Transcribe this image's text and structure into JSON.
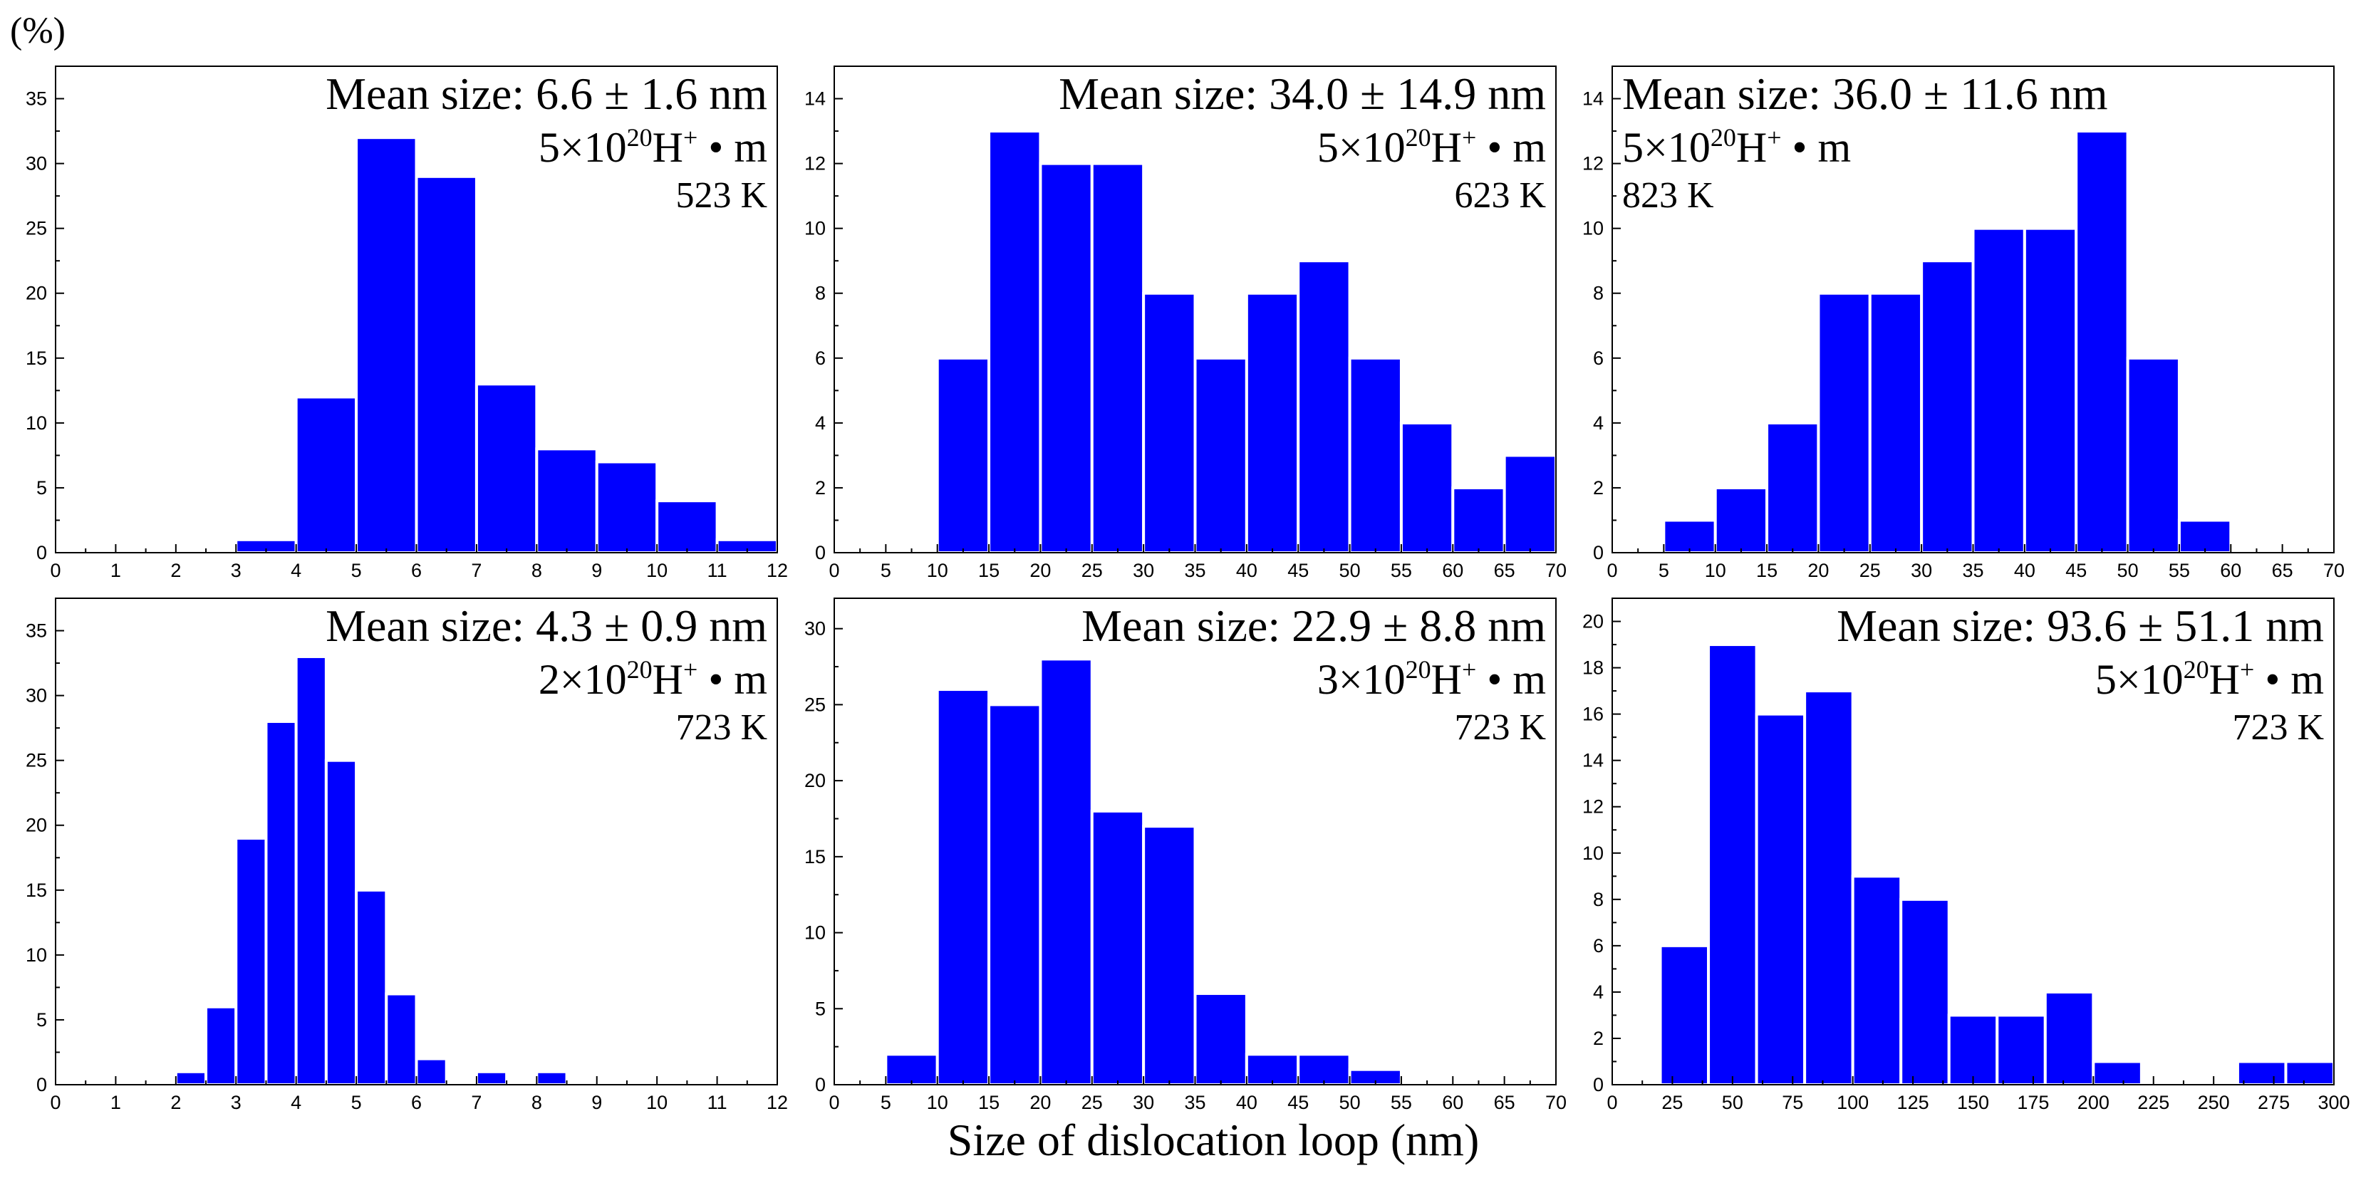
{
  "y_unit_label": "(%)",
  "x_axis_label": "Size of dislocation loop (nm)",
  "chart_data": [
    {
      "type": "bar",
      "x_tick_labels": [
        "0",
        "1",
        "2",
        "3",
        "4",
        "5",
        "6",
        "7",
        "8",
        "9",
        "10",
        "11",
        "12"
      ],
      "y_tick_labels": [
        "0",
        "5",
        "10",
        "15",
        "20",
        "25",
        "30",
        "35"
      ],
      "xlim": [
        0,
        12
      ],
      "ylim": [
        0,
        37.5
      ],
      "bin_width": 1,
      "bin_starts": [
        3,
        4,
        5,
        6,
        7,
        8,
        9,
        10,
        11
      ],
      "values": [
        1,
        12,
        32,
        29,
        13,
        8,
        7,
        4,
        1
      ],
      "annotations": {
        "mean": "Mean size: 6.6 ± 1.6 nm",
        "dose_prefix": "5×10",
        "dose_exp": "20",
        "dose_mid": "H",
        "dose_sup": "+",
        "dose_suffix": " • m",
        "temp": "523 K",
        "align": "right"
      }
    },
    {
      "type": "bar",
      "x_tick_labels": [
        "0",
        "5",
        "10",
        "15",
        "20",
        "25",
        "30",
        "35",
        "40",
        "45",
        "50",
        "55",
        "60",
        "65",
        "70"
      ],
      "y_tick_labels": [
        "0",
        "2",
        "4",
        "6",
        "8",
        "10",
        "12",
        "14"
      ],
      "xlim": [
        0,
        70
      ],
      "ylim": [
        0,
        15
      ],
      "bin_width": 5,
      "bin_starts": [
        10,
        15,
        20,
        25,
        30,
        35,
        40,
        45,
        50,
        55,
        60,
        65
      ],
      "values": [
        6,
        13,
        12,
        12,
        8,
        6,
        8,
        9,
        6,
        4,
        2,
        3
      ],
      "annotations": {
        "mean": "Mean size: 34.0 ± 14.9 nm",
        "dose_prefix": "5×10",
        "dose_exp": "20",
        "dose_mid": "H",
        "dose_sup": "+",
        "dose_suffix": " • m",
        "temp": "623 K",
        "align": "right"
      }
    },
    {
      "type": "bar",
      "x_tick_labels": [
        "0",
        "5",
        "10",
        "15",
        "20",
        "25",
        "30",
        "35",
        "40",
        "45",
        "50",
        "55",
        "60",
        "65",
        "70"
      ],
      "y_tick_labels": [
        "0",
        "2",
        "4",
        "6",
        "8",
        "10",
        "12",
        "14"
      ],
      "xlim": [
        0,
        70
      ],
      "ylim": [
        0,
        15
      ],
      "bin_width": 5,
      "bin_starts": [
        5,
        10,
        15,
        20,
        25,
        30,
        35,
        40,
        45,
        50,
        55
      ],
      "values": [
        1,
        2,
        4,
        8,
        8,
        9,
        10,
        10,
        13,
        6,
        1
      ],
      "annotations": {
        "mean": "Mean size: 36.0 ± 11.6 nm",
        "dose_prefix": "5×10",
        "dose_exp": "20",
        "dose_mid": "H",
        "dose_sup": "+",
        "dose_suffix": " • m",
        "temp": "823 K",
        "align": "left"
      }
    },
    {
      "type": "bar",
      "x_tick_labels": [
        "0",
        "1",
        "2",
        "3",
        "4",
        "5",
        "6",
        "7",
        "8",
        "9",
        "10",
        "11",
        "12"
      ],
      "y_tick_labels": [
        "0",
        "5",
        "10",
        "15",
        "20",
        "25",
        "30",
        "35"
      ],
      "xlim": [
        0,
        12
      ],
      "ylim": [
        0,
        37.5
      ],
      "bin_width": 0.5,
      "bin_starts": [
        2,
        2.5,
        3,
        3.5,
        4,
        4.5,
        5,
        5.5,
        6,
        7,
        8
      ],
      "values": [
        1,
        6,
        19,
        28,
        33,
        25,
        15,
        7,
        2,
        1,
        1
      ],
      "annotations": {
        "mean": "Mean size: 4.3 ± 0.9 nm",
        "dose_prefix": "2×10",
        "dose_exp": "20",
        "dose_mid": "H",
        "dose_sup": "+",
        "dose_suffix": " • m",
        "temp": "723 K",
        "align": "right"
      }
    },
    {
      "type": "bar",
      "x_tick_labels": [
        "0",
        "5",
        "10",
        "15",
        "20",
        "25",
        "30",
        "35",
        "40",
        "45",
        "50",
        "55",
        "60",
        "65",
        "70"
      ],
      "y_tick_labels": [
        "0",
        "5",
        "10",
        "15",
        "20",
        "25",
        "30"
      ],
      "xlim": [
        0,
        70
      ],
      "ylim": [
        0,
        32
      ],
      "bin_width": 5,
      "bin_starts": [
        5,
        10,
        15,
        20,
        25,
        30,
        35,
        40,
        45,
        50
      ],
      "values": [
        2,
        26,
        25,
        28,
        18,
        17,
        6,
        2,
        2,
        1
      ],
      "annotations": {
        "mean": "Mean size: 22.9 ± 8.8 nm",
        "dose_prefix": "3×10",
        "dose_exp": "20",
        "dose_mid": "H",
        "dose_sup": "+",
        "dose_suffix": " • m",
        "temp": "723 K",
        "align": "right"
      }
    },
    {
      "type": "bar",
      "x_tick_labels": [
        "0",
        "25",
        "50",
        "75",
        "100",
        "125",
        "150",
        "175",
        "200",
        "225",
        "250",
        "275",
        "300"
      ],
      "y_tick_labels": [
        "0",
        "2",
        "4",
        "6",
        "8",
        "10",
        "12",
        "14",
        "16",
        "18",
        "20"
      ],
      "xlim": [
        0,
        300
      ],
      "ylim": [
        0,
        21
      ],
      "bin_width": 20,
      "bin_starts": [
        20,
        40,
        60,
        80,
        100,
        120,
        140,
        160,
        180,
        200,
        260,
        280
      ],
      "values": [
        6,
        19,
        16,
        17,
        9,
        8,
        3,
        3,
        4,
        1,
        1,
        1
      ],
      "annotations": {
        "mean": "Mean size: 93.6 ± 51.1 nm",
        "dose_prefix": "5×10",
        "dose_exp": "20",
        "dose_mid": "H",
        "dose_sup": "+",
        "dose_suffix": " • m",
        "temp": "723 K",
        "align": "right"
      }
    }
  ],
  "colors": {
    "bar": "#0000ff",
    "bar_edge": "#ffffff",
    "axis": "#000000",
    "background": "#ffffff"
  }
}
